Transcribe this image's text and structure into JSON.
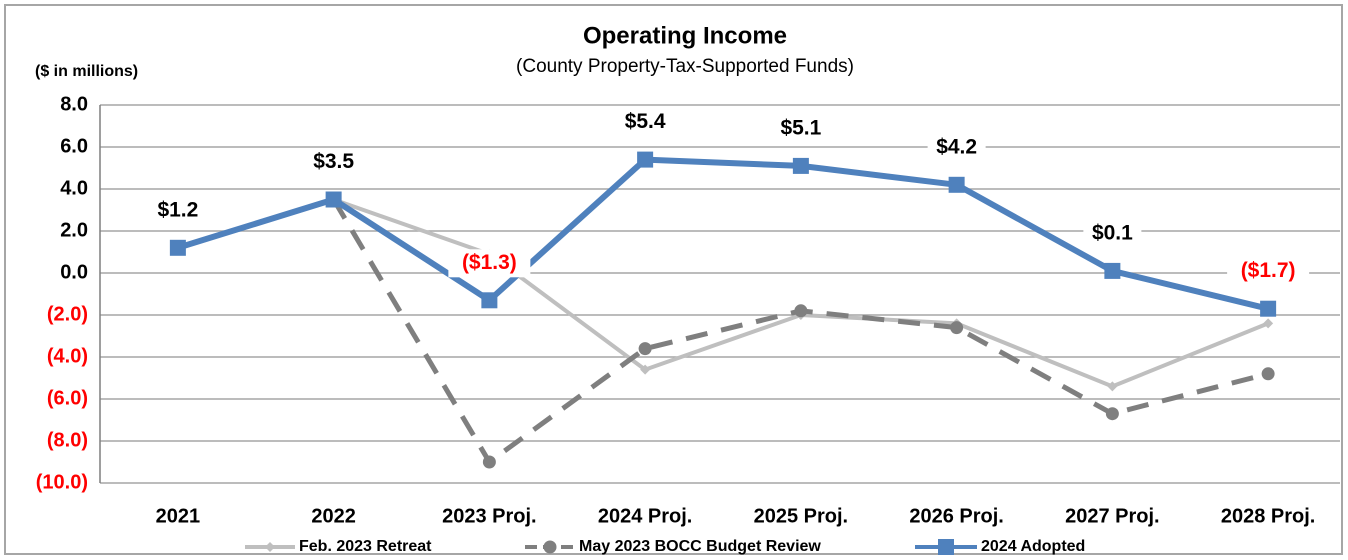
{
  "chart_data": {
    "type": "line",
    "title": "Operating Income",
    "subtitle": "(County Property-Tax-Supported  Funds)",
    "ylabel": "($ in millions)",
    "categories": [
      "2021",
      "2022",
      "2023 Proj.",
      "2024 Proj.",
      "2025 Proj.",
      "2026 Proj.",
      "2027 Proj.",
      "2028 Proj."
    ],
    "series": [
      {
        "name": "Feb. 2023  Retreat",
        "color": "#bfbfbf",
        "style": "solid",
        "marker": "diamond",
        "values": [
          null,
          3.5,
          0.9,
          -4.6,
          -2.0,
          -2.4,
          -5.4,
          -2.4
        ]
      },
      {
        "name": "May 2023 BOCC Budget Review",
        "color": "#7f7f7f",
        "style": "dashed",
        "marker": "circle",
        "values": [
          null,
          3.5,
          -9.0,
          -3.6,
          -1.8,
          -2.6,
          -6.7,
          -4.8
        ]
      },
      {
        "name": "2024 Adopted",
        "color": "#4f81bd",
        "style": "solid",
        "marker": "square",
        "values": [
          1.2,
          3.5,
          -1.3,
          5.4,
          5.1,
          4.2,
          0.1,
          -1.7
        ],
        "value_labels": [
          "$1.2",
          "$3.5",
          "($1.3)",
          "$5.4",
          "$5.1",
          "$4.2",
          "$0.1",
          "($1.7)"
        ]
      }
    ],
    "ylim": [
      -10,
      8
    ],
    "yticks": [
      {
        "value": 8,
        "label": "8.0"
      },
      {
        "value": 6,
        "label": "6.0"
      },
      {
        "value": 4,
        "label": "4.0"
      },
      {
        "value": 2,
        "label": "2.0"
      },
      {
        "value": 0,
        "label": "0.0"
      },
      {
        "value": -2,
        "label": "(2.0)"
      },
      {
        "value": -4,
        "label": "(4.0)"
      },
      {
        "value": -6,
        "label": "(6.0)"
      },
      {
        "value": -8,
        "label": "(8.0)"
      },
      {
        "value": -10,
        "label": "(10.0)"
      }
    ],
    "negative_color": "#ff0000",
    "grid": true,
    "legend": "bottom"
  }
}
